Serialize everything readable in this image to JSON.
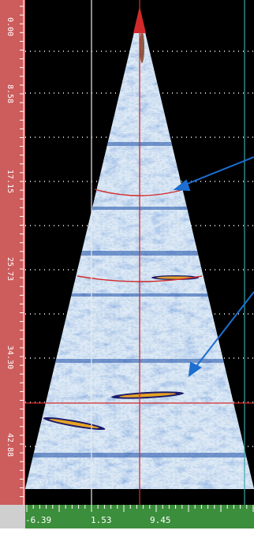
{
  "left_ruler": {
    "labels": [
      "0.00",
      "8.58",
      "17.15",
      "25.73",
      "34.30",
      "42.88"
    ],
    "color": "#cd5c5c"
  },
  "bottom_ruler": {
    "labels": [
      "-6.39",
      "1.53",
      "9.45"
    ],
    "color": "#3b8e3b"
  },
  "colors": {
    "background": "#000000",
    "cursor": "#d22a2a",
    "reference_line": "#e8e8e8",
    "gate_line": "#3aa6a6",
    "annotation_arrow": "#1c6fd0",
    "scan_base": "#c7dbef"
  },
  "icons": [
    "probe-marker-icon",
    "annotation-arrow-icon"
  ]
}
